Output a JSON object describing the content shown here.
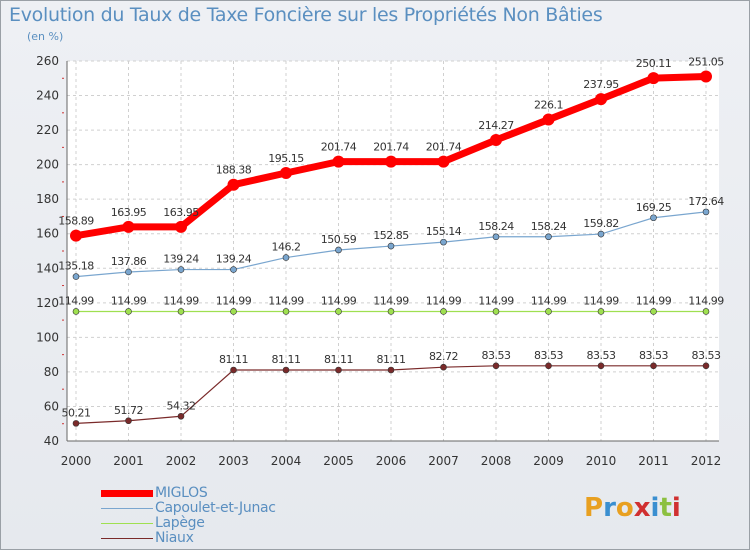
{
  "header": {
    "title": "Evolution du Taux de Taxe Foncière sur les Propriétés Non Bâties",
    "unit": "(en %)"
  },
  "logo": {
    "text": "Proxiti",
    "colors": [
      "#e8a020",
      "#3a8fd0",
      "#e8a020",
      "#d03030",
      "#3a8fd0",
      "#8cc040",
      "#d03030"
    ]
  },
  "chart_data": {
    "type": "line",
    "x": [
      "2000",
      "2001",
      "2002",
      "2003",
      "2004",
      "2005",
      "2006",
      "2007",
      "2008",
      "2009",
      "2010",
      "2011",
      "2012"
    ],
    "ylim": [
      40,
      260
    ],
    "yticks": [
      "40",
      "60",
      "80",
      "100",
      "120",
      "140",
      "160",
      "180",
      "200",
      "220",
      "240",
      "260"
    ],
    "grid": true,
    "legend_position": "bottom-left",
    "series": [
      {
        "name": "MIGLOS",
        "color": "#ff0000",
        "values": [
          158.89,
          163.95,
          163.95,
          188.38,
          195.15,
          201.74,
          201.74,
          201.74,
          214.27,
          226.1,
          237.95,
          250.11,
          251.05
        ],
        "labels": [
          "158.89",
          "163.95",
          "163.95",
          "188.38",
          "195.15",
          "201.74",
          "201.74",
          "201.74",
          "214.27",
          "226.1",
          "237.95",
          "250.11",
          "251.05"
        ]
      },
      {
        "name": "Capoulet-et-Junac",
        "color": "#7aa6cf",
        "values": [
          135.18,
          137.86,
          139.24,
          139.24,
          146.2,
          150.59,
          152.85,
          155.14,
          158.24,
          158.24,
          159.82,
          169.25,
          172.64
        ],
        "labels": [
          "135.18",
          "137.86",
          "139.24",
          "139.24",
          "146.2",
          "150.59",
          "152.85",
          "155.14",
          "158.24",
          "158.24",
          "159.82",
          "169.25",
          "172.64"
        ]
      },
      {
        "name": "Lapège",
        "color": "#9fe050",
        "values": [
          114.99,
          114.99,
          114.99,
          114.99,
          114.99,
          114.99,
          114.99,
          114.99,
          114.99,
          114.99,
          114.99,
          114.99,
          114.99
        ],
        "labels": [
          "114.99",
          "114.99",
          "114.99",
          "114.99",
          "114.99",
          "114.99",
          "114.99",
          "114.99",
          "114.99",
          "114.99",
          "114.99",
          "114.99",
          "114.99"
        ]
      },
      {
        "name": "Niaux",
        "color": "#7a2a2a",
        "values": [
          50.21,
          51.72,
          54.32,
          81.11,
          81.11,
          81.11,
          81.11,
          82.72,
          83.53,
          83.53,
          83.53,
          83.53,
          83.53
        ],
        "labels": [
          "50.21",
          "51.72",
          "54.32",
          "81.11",
          "81.11",
          "81.11",
          "81.11",
          "82.72",
          "83.53",
          "83.53",
          "83.53",
          "83.53",
          "83.53"
        ]
      }
    ]
  }
}
